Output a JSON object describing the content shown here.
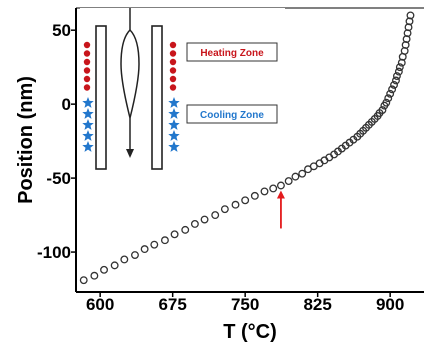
{
  "chart_data": {
    "type": "scatter",
    "xlabel": "T (°C)",
    "ylabel": "Position (nm)",
    "xlim": [
      575,
      935
    ],
    "ylim": [
      -127,
      65
    ],
    "x_ticks": [
      "600",
      "675",
      "750",
      "825",
      "900"
    ],
    "x_tick_values": [
      600,
      675,
      750,
      825,
      900
    ],
    "y_ticks": [
      "50",
      "0",
      "-50",
      "-100"
    ],
    "y_tick_values": [
      50,
      0,
      -50,
      -100
    ],
    "grid": false,
    "marker": "open-circle",
    "annotation": {
      "type": "red-arrow",
      "x": 787,
      "y": -57
    },
    "series": [
      {
        "x": [
          583,
          594,
          604,
          615,
          625,
          636,
          646,
          656,
          667,
          677,
          688,
          698,
          708,
          719,
          729,
          740,
          750,
          760,
          770,
          779,
          787,
          795,
          802,
          809,
          815,
          821,
          827,
          832,
          837,
          842,
          846,
          850,
          854,
          858,
          862,
          866,
          869,
          872,
          875,
          878,
          881,
          884,
          887,
          889,
          892,
          894,
          896,
          898,
          900,
          902,
          904,
          906,
          907,
          909,
          910,
          912,
          913,
          915,
          916,
          917,
          918,
          919,
          920,
          921
        ],
        "y": [
          -119,
          -116,
          -112,
          -109,
          -105,
          -102,
          -98,
          -95,
          -92,
          -88,
          -85,
          -81,
          -78,
          -75,
          -71,
          -68,
          -65,
          -62,
          -59,
          -57,
          -55,
          -52,
          -49,
          -47,
          -44,
          -42,
          -40,
          -38,
          -36,
          -34,
          -32,
          -30,
          -28,
          -26,
          -24,
          -22,
          -20,
          -18,
          -16,
          -14,
          -12,
          -10,
          -8,
          -6,
          -4,
          -1,
          1,
          4,
          7,
          10,
          13,
          16,
          19,
          22,
          25,
          28,
          32,
          36,
          40,
          44,
          48,
          52,
          56,
          60
        ]
      }
    ]
  },
  "inset": {
    "heating_label": "Heating Zone",
    "cooling_label": "Cooling Zone",
    "heating_color": "#c8151b",
    "cooling_color": "#2277cc",
    "arrow_color": "#e31a1c"
  }
}
